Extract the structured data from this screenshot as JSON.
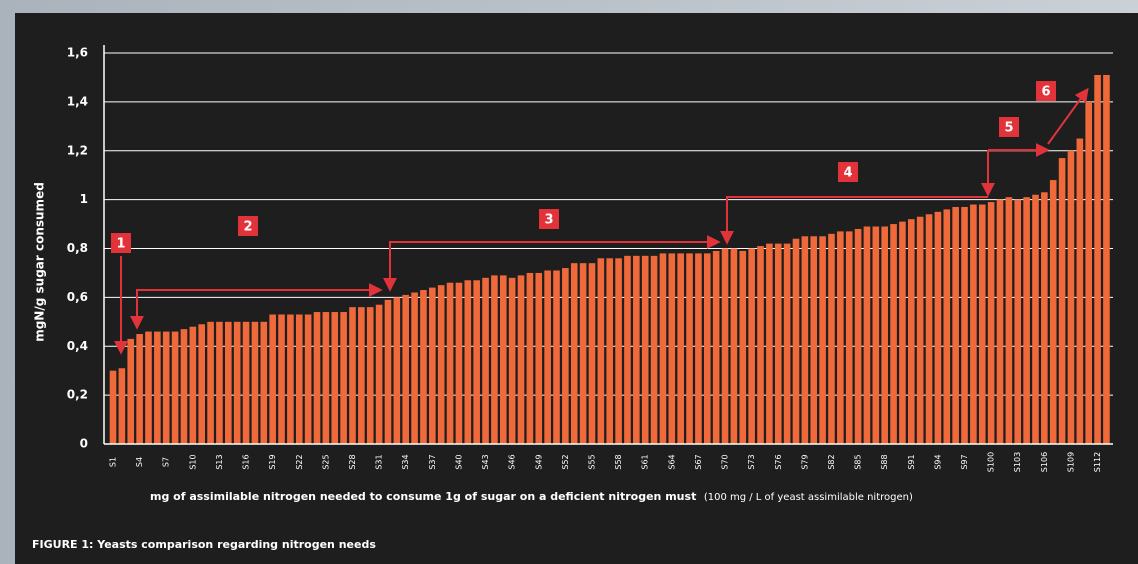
{
  "chart_data": {
    "type": "bar",
    "caption": "FIGURE 1: Yeasts comparison regarding nitrogen needs",
    "x_label": "mg of assimilable nitrogen needed to consume 1g of sugar on a deficient nitrogen must",
    "x_label_note": "(100 mg / L of yeast assimilable nitrogen)",
    "y_label": "mgN/g sugar consumed",
    "color": "#f0693a",
    "grid": true,
    "ylim": [
      0,
      1.6
    ],
    "yticks": [
      0,
      {
        "value": 0.2,
        "label": "0,2"
      },
      {
        "value": 0.4,
        "label": "0,4"
      },
      {
        "value": 0.6,
        "label": "0,6"
      },
      {
        "value": 0.8,
        "label": "0,8"
      },
      1,
      {
        "value": 1.2,
        "label": "1,2"
      },
      {
        "value": 1.4,
        "label": "1,4"
      },
      {
        "value": 1.6,
        "label": "1,6"
      }
    ],
    "categories": [
      "S1",
      null,
      null,
      "S4",
      null,
      null,
      "S7",
      null,
      null,
      "S10",
      null,
      null,
      "S13",
      null,
      null,
      "S16",
      null,
      null,
      "S19",
      null,
      null,
      "S22",
      null,
      null,
      "S25",
      null,
      null,
      "S28",
      null,
      null,
      "S31",
      null,
      null,
      "S34",
      null,
      null,
      "S37",
      null,
      null,
      "S40",
      null,
      null,
      "S43",
      null,
      null,
      "S46",
      null,
      null,
      "S49",
      null,
      null,
      "S52",
      null,
      null,
      "S55",
      null,
      null,
      "S58",
      null,
      null,
      "S61",
      null,
      null,
      "S64",
      null,
      null,
      "S67",
      null,
      null,
      "S70",
      null,
      null,
      "S73",
      null,
      null,
      "S76",
      null,
      null,
      "S79",
      null,
      null,
      "S82",
      null,
      null,
      "S85",
      null,
      null,
      "S88",
      null,
      null,
      "S91",
      null,
      null,
      "S94",
      null,
      null,
      "S97",
      null,
      null,
      "S100",
      null,
      null,
      "S103",
      null,
      null,
      "S106",
      null,
      null,
      "S109",
      null,
      null,
      "S112",
      null
    ],
    "values": [
      0.3,
      0.31,
      0.43,
      0.45,
      0.46,
      0.46,
      0.46,
      0.46,
      0.47,
      0.48,
      0.49,
      0.5,
      0.5,
      0.5,
      0.5,
      0.5,
      0.5,
      0.5,
      0.53,
      0.53,
      0.53,
      0.53,
      0.53,
      0.54,
      0.54,
      0.54,
      0.54,
      0.56,
      0.56,
      0.56,
      0.57,
      0.59,
      0.6,
      0.61,
      0.62,
      0.63,
      0.64,
      0.65,
      0.66,
      0.66,
      0.67,
      0.67,
      0.68,
      0.69,
      0.69,
      0.68,
      0.69,
      0.7,
      0.7,
      0.71,
      0.71,
      0.72,
      0.74,
      0.74,
      0.74,
      0.76,
      0.76,
      0.76,
      0.77,
      0.77,
      0.77,
      0.77,
      0.78,
      0.78,
      0.78,
      0.78,
      0.78,
      0.78,
      0.79,
      0.8,
      0.8,
      0.79,
      0.8,
      0.81,
      0.82,
      0.82,
      0.82,
      0.84,
      0.85,
      0.85,
      0.85,
      0.86,
      0.87,
      0.87,
      0.88,
      0.89,
      0.89,
      0.89,
      0.9,
      0.91,
      0.92,
      0.93,
      0.94,
      0.95,
      0.96,
      0.97,
      0.97,
      0.98,
      0.98,
      0.99,
      1.0,
      1.01,
      1.0,
      1.01,
      1.02,
      1.03,
      1.08,
      1.17,
      1.2,
      1.25,
      1.4,
      1.51,
      1.51
    ],
    "annotations": [
      "1",
      "2",
      "3",
      "4",
      "5",
      "6"
    ]
  }
}
